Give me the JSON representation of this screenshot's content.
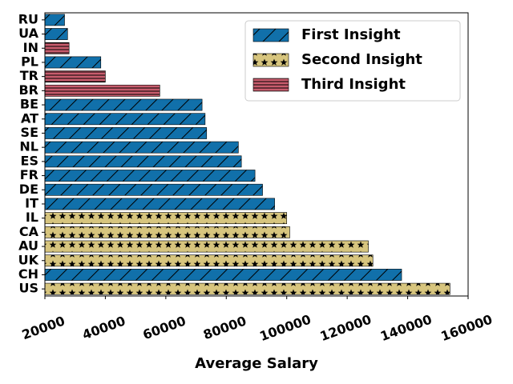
{
  "chart_data": {
    "type": "bar",
    "orientation": "horizontal",
    "title": "",
    "xlabel": "Average Salary",
    "ylabel": "",
    "xlim": [
      20000,
      160000
    ],
    "x_ticks": [
      20000,
      40000,
      60000,
      80000,
      100000,
      120000,
      140000,
      160000
    ],
    "x_tick_rotation_deg": 20,
    "grid": false,
    "legend_position": "top-right",
    "categories": [
      "US",
      "CH",
      "UK",
      "AU",
      "CA",
      "IL",
      "IT",
      "DE",
      "FR",
      "ES",
      "NL",
      "SE",
      "AT",
      "BE",
      "BR",
      "TR",
      "PL",
      "IN",
      "UA",
      "RU"
    ],
    "values": [
      154000,
      138000,
      128500,
      127000,
      101000,
      100000,
      96000,
      92000,
      89500,
      85000,
      84000,
      73500,
      73000,
      72000,
      58000,
      40000,
      38500,
      28000,
      27500,
      26500
    ],
    "groups": [
      "Second Insight",
      "First Insight",
      "Second Insight",
      "Second Insight",
      "Second Insight",
      "Second Insight",
      "First Insight",
      "First Insight",
      "First Insight",
      "First Insight",
      "First Insight",
      "First Insight",
      "First Insight",
      "First Insight",
      "Third Insight",
      "Third Insight",
      "First Insight",
      "Third Insight",
      "First Insight",
      "First Insight"
    ],
    "series": [
      {
        "name": "First Insight",
        "color": "#1170aa",
        "hatch": "diagonal"
      },
      {
        "name": "Second Insight",
        "color": "#d7c57e",
        "hatch": "stars"
      },
      {
        "name": "Third Insight",
        "color": "#c85c6d",
        "hatch": "horizontal"
      }
    ]
  }
}
